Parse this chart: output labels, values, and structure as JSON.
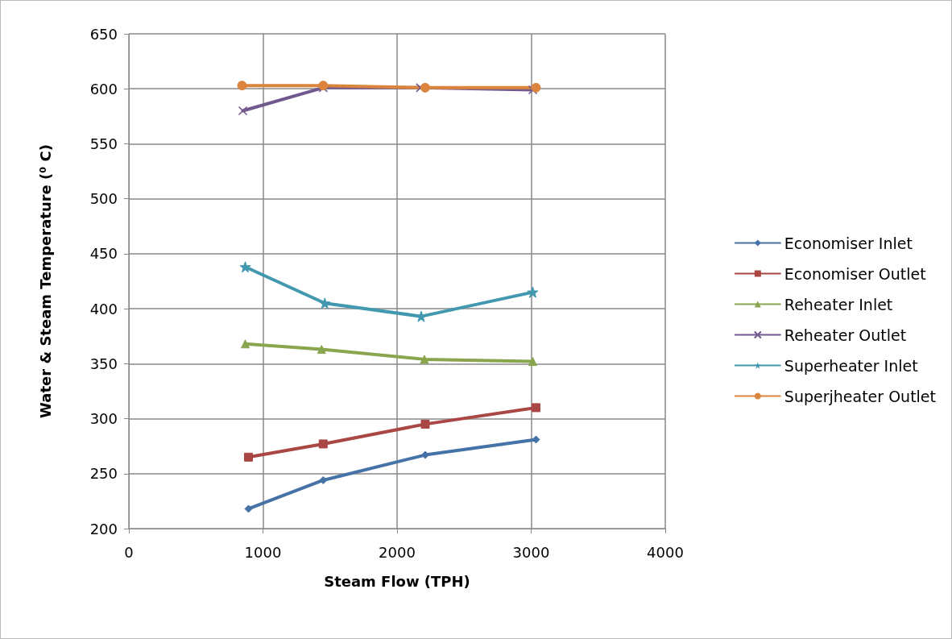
{
  "chart_data": {
    "type": "line",
    "xlabel": "Steam Flow (TPH)",
    "ylabel": "Water & Steam Temperature (⁰ C)",
    "xlim": [
      0,
      4000
    ],
    "xticks": [
      0,
      1000,
      2000,
      3000,
      4000
    ],
    "ylim": [
      200,
      650
    ],
    "yticks": [
      200,
      250,
      300,
      350,
      400,
      450,
      500,
      550,
      600,
      650
    ],
    "grid": true,
    "legend": "right",
    "series": [
      {
        "name": "Economiser Inlet",
        "color": "#4572a7",
        "marker": "diamond",
        "x": [
          892,
          1449,
          2210,
          3036
        ],
        "values": [
          218,
          244,
          267,
          281
        ]
      },
      {
        "name": "Economiser Outlet",
        "color": "#aa4643",
        "marker": "square",
        "x": [
          892,
          1449,
          2210,
          3036
        ],
        "values": [
          265,
          277,
          295,
          310
        ]
      },
      {
        "name": "Reheater Inlet",
        "color": "#89a54e",
        "marker": "triangle",
        "x": [
          868,
          1437,
          2204,
          3012
        ],
        "values": [
          368,
          363,
          354,
          352
        ]
      },
      {
        "name": "Reheater Outlet",
        "color": "#71588f",
        "marker": "cross",
        "x": [
          850,
          1449,
          2174,
          3012
        ],
        "values": [
          580,
          601,
          601,
          599
        ]
      },
      {
        "name": "Superheater Inlet",
        "color": "#4198af",
        "marker": "star",
        "x": [
          868,
          1461,
          2180,
          3012
        ],
        "values": [
          438,
          405,
          393,
          415
        ]
      },
      {
        "name": "Superjheater Outlet",
        "color": "#db843d",
        "marker": "circle",
        "x": [
          844,
          1449,
          2210,
          3036
        ],
        "values": [
          603,
          603,
          601,
          601
        ]
      }
    ]
  }
}
